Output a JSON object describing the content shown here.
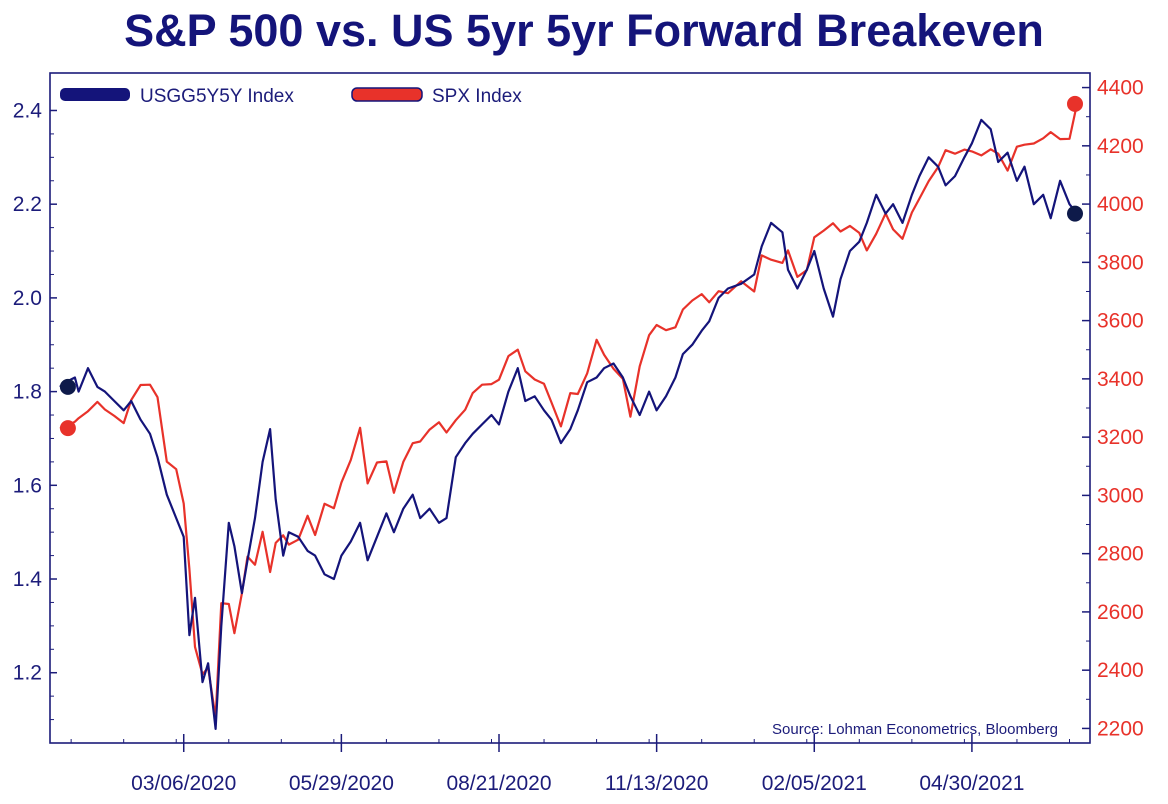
{
  "chart_data": {
    "type": "line",
    "title": "S&P 500 vs. US 5yr 5yr Forward Breakeven",
    "source": "Source: Lohman Econometrics, Bloomberg",
    "x_ticks": [
      "03/06/2020",
      "05/29/2020",
      "08/21/2020",
      "11/13/2020",
      "02/05/2021",
      "04/30/2021"
    ],
    "x_range": [
      "12/30/2019",
      "06/25/2021"
    ],
    "left_axis": {
      "ticks": [
        "1.2",
        "1.4",
        "1.6",
        "1.8",
        "2.0",
        "2.2",
        "2.4"
      ],
      "range": [
        1.05,
        2.48
      ]
    },
    "right_axis": {
      "ticks": [
        "2200",
        "2400",
        "2600",
        "2800",
        "3000",
        "3200",
        "3400",
        "3600",
        "3800",
        "4000",
        "4200",
        "4400"
      ],
      "range": [
        2150,
        4450
      ]
    },
    "legend_position": "top-left",
    "grid": false,
    "colors": {
      "title": "#14147a",
      "usgg": "#14147a",
      "spx": "#e8322a",
      "axis": "#1c1c7a"
    },
    "series": [
      {
        "name": "USGG5Y5Y Index",
        "axis": "left",
        "points": [
          [
            "12/31/2019",
            1.81
          ],
          [
            "01/03/2020",
            1.82
          ],
          [
            "01/08/2020",
            1.83
          ],
          [
            "01/10/2020",
            1.8
          ],
          [
            "01/15/2020",
            1.85
          ],
          [
            "01/20/2020",
            1.81
          ],
          [
            "01/24/2020",
            1.8
          ],
          [
            "01/29/2020",
            1.78
          ],
          [
            "02/03/2020",
            1.76
          ],
          [
            "02/07/2020",
            1.78
          ],
          [
            "02/12/2020",
            1.74
          ],
          [
            "02/17/2020",
            1.71
          ],
          [
            "02/21/2020",
            1.66
          ],
          [
            "02/26/2020",
            1.58
          ],
          [
            "03/02/2020",
            1.53
          ],
          [
            "03/06/2020",
            1.49
          ],
          [
            "03/09/2020",
            1.28
          ],
          [
            "03/12/2020",
            1.36
          ],
          [
            "03/16/2020",
            1.18
          ],
          [
            "03/19/2020",
            1.22
          ],
          [
            "03/23/2020",
            1.08
          ],
          [
            "03/26/2020",
            1.3
          ],
          [
            "03/30/2020",
            1.52
          ],
          [
            "04/02/2020",
            1.47
          ],
          [
            "04/06/2020",
            1.37
          ],
          [
            "04/09/2020",
            1.44
          ],
          [
            "04/13/2020",
            1.53
          ],
          [
            "04/17/2020",
            1.65
          ],
          [
            "04/21/2020",
            1.72
          ],
          [
            "04/24/2020",
            1.57
          ],
          [
            "04/28/2020",
            1.45
          ],
          [
            "05/01/2020",
            1.5
          ],
          [
            "05/06/2020",
            1.49
          ],
          [
            "05/11/2020",
            1.46
          ],
          [
            "05/15/2020",
            1.45
          ],
          [
            "05/20/2020",
            1.41
          ],
          [
            "05/25/2020",
            1.4
          ],
          [
            "05/29/2020",
            1.45
          ],
          [
            "06/03/2020",
            1.48
          ],
          [
            "06/08/2020",
            1.52
          ],
          [
            "06/12/2020",
            1.44
          ],
          [
            "06/17/2020",
            1.49
          ],
          [
            "06/22/2020",
            1.54
          ],
          [
            "06/26/2020",
            1.5
          ],
          [
            "07/01/2020",
            1.55
          ],
          [
            "07/06/2020",
            1.58
          ],
          [
            "07/10/2020",
            1.53
          ],
          [
            "07/15/2020",
            1.55
          ],
          [
            "07/20/2020",
            1.52
          ],
          [
            "07/24/2020",
            1.53
          ],
          [
            "07/29/2020",
            1.66
          ],
          [
            "08/03/2020",
            1.69
          ],
          [
            "08/07/2020",
            1.71
          ],
          [
            "08/12/2020",
            1.73
          ],
          [
            "08/17/2020",
            1.75
          ],
          [
            "08/21/2020",
            1.73
          ],
          [
            "08/26/2020",
            1.8
          ],
          [
            "08/31/2020",
            1.85
          ],
          [
            "09/04/2020",
            1.78
          ],
          [
            "09/09/2020",
            1.79
          ],
          [
            "09/14/2020",
            1.76
          ],
          [
            "09/18/2020",
            1.74
          ],
          [
            "09/23/2020",
            1.69
          ],
          [
            "09/28/2020",
            1.72
          ],
          [
            "10/02/2020",
            1.76
          ],
          [
            "10/07/2020",
            1.82
          ],
          [
            "10/12/2020",
            1.83
          ],
          [
            "10/16/2020",
            1.85
          ],
          [
            "10/21/2020",
            1.86
          ],
          [
            "10/26/2020",
            1.83
          ],
          [
            "10/30/2020",
            1.79
          ],
          [
            "11/04/2020",
            1.75
          ],
          [
            "11/09/2020",
            1.8
          ],
          [
            "11/13/2020",
            1.76
          ],
          [
            "11/18/2020",
            1.79
          ],
          [
            "11/23/2020",
            1.83
          ],
          [
            "11/27/2020",
            1.88
          ],
          [
            "12/02/2020",
            1.9
          ],
          [
            "12/07/2020",
            1.93
          ],
          [
            "12/11/2020",
            1.95
          ],
          [
            "12/16/2020",
            2.0
          ],
          [
            "12/21/2020",
            2.02
          ],
          [
            "12/28/2020",
            2.03
          ],
          [
            "01/04/2021",
            2.05
          ],
          [
            "01/08/2021",
            2.11
          ],
          [
            "01/13/2021",
            2.16
          ],
          [
            "01/19/2021",
            2.14
          ],
          [
            "01/22/2021",
            2.06
          ],
          [
            "01/27/2021",
            2.02
          ],
          [
            "02/01/2021",
            2.06
          ],
          [
            "02/05/2021",
            2.1
          ],
          [
            "02/10/2021",
            2.02
          ],
          [
            "02/15/2021",
            1.96
          ],
          [
            "02/19/2021",
            2.04
          ],
          [
            "02/24/2021",
            2.1
          ],
          [
            "03/01/2021",
            2.12
          ],
          [
            "03/05/2021",
            2.16
          ],
          [
            "03/10/2021",
            2.22
          ],
          [
            "03/15/2021",
            2.18
          ],
          [
            "03/19/2021",
            2.2
          ],
          [
            "03/24/2021",
            2.16
          ],
          [
            "03/29/2021",
            2.22
          ],
          [
            "04/02/2021",
            2.26
          ],
          [
            "04/07/2021",
            2.3
          ],
          [
            "04/12/2021",
            2.28
          ],
          [
            "04/16/2021",
            2.24
          ],
          [
            "04/21/2021",
            2.26
          ],
          [
            "04/26/2021",
            2.3
          ],
          [
            "04/30/2021",
            2.33
          ],
          [
            "05/05/2021",
            2.38
          ],
          [
            "05/10/2021",
            2.36
          ],
          [
            "05/14/2021",
            2.29
          ],
          [
            "05/19/2021",
            2.31
          ],
          [
            "05/24/2021",
            2.25
          ],
          [
            "05/28/2021",
            2.28
          ],
          [
            "06/02/2021",
            2.2
          ],
          [
            "06/07/2021",
            2.22
          ],
          [
            "06/11/2021",
            2.17
          ],
          [
            "06/16/2021",
            2.25
          ],
          [
            "06/21/2021",
            2.2
          ],
          [
            "06/25/2021",
            2.18
          ]
        ]
      },
      {
        "name": "SPX Index",
        "axis": "right",
        "points": [
          [
            "12/31/2019",
            3231
          ],
          [
            "01/03/2020",
            3234
          ],
          [
            "01/08/2020",
            3253
          ],
          [
            "01/10/2020",
            3265
          ],
          [
            "01/15/2020",
            3289
          ],
          [
            "01/20/2020",
            3321
          ],
          [
            "01/24/2020",
            3295
          ],
          [
            "01/29/2020",
            3273
          ],
          [
            "02/03/2020",
            3248
          ],
          [
            "02/07/2020",
            3327
          ],
          [
            "02/12/2020",
            3379
          ],
          [
            "02/17/2020",
            3380
          ],
          [
            "02/21/2020",
            3337
          ],
          [
            "02/26/2020",
            3116
          ],
          [
            "03/02/2020",
            3090
          ],
          [
            "03/06/2020",
            2972
          ],
          [
            "03/09/2020",
            2747
          ],
          [
            "03/12/2020",
            2480
          ],
          [
            "03/16/2020",
            2386
          ],
          [
            "03/19/2020",
            2409
          ],
          [
            "03/23/2020",
            2237
          ],
          [
            "03/26/2020",
            2630
          ],
          [
            "03/30/2020",
            2627
          ],
          [
            "04/02/2020",
            2527
          ],
          [
            "04/06/2020",
            2664
          ],
          [
            "04/09/2020",
            2790
          ],
          [
            "04/13/2020",
            2762
          ],
          [
            "04/17/2020",
            2875
          ],
          [
            "04/21/2020",
            2737
          ],
          [
            "04/24/2020",
            2837
          ],
          [
            "04/28/2020",
            2863
          ],
          [
            "05/01/2020",
            2831
          ],
          [
            "05/06/2020",
            2848
          ],
          [
            "05/11/2020",
            2930
          ],
          [
            "05/15/2020",
            2864
          ],
          [
            "05/20/2020",
            2971
          ],
          [
            "05/25/2020",
            2956
          ],
          [
            "05/29/2020",
            3044
          ],
          [
            "06/03/2020",
            3122
          ],
          [
            "06/08/2020",
            3232
          ],
          [
            "06/12/2020",
            3041
          ],
          [
            "06/17/2020",
            3113
          ],
          [
            "06/22/2020",
            3117
          ],
          [
            "06/26/2020",
            3009
          ],
          [
            "07/01/2020",
            3115
          ],
          [
            "07/06/2020",
            3179
          ],
          [
            "07/10/2020",
            3185
          ],
          [
            "07/15/2020",
            3226
          ],
          [
            "07/20/2020",
            3251
          ],
          [
            "07/24/2020",
            3216
          ],
          [
            "07/29/2020",
            3258
          ],
          [
            "08/03/2020",
            3294
          ],
          [
            "08/07/2020",
            3351
          ],
          [
            "08/12/2020",
            3380
          ],
          [
            "08/17/2020",
            3382
          ],
          [
            "08/21/2020",
            3397
          ],
          [
            "08/26/2020",
            3478
          ],
          [
            "08/31/2020",
            3500
          ],
          [
            "09/04/2020",
            3426
          ],
          [
            "09/09/2020",
            3398
          ],
          [
            "09/14/2020",
            3383
          ],
          [
            "09/18/2020",
            3319
          ],
          [
            "09/23/2020",
            3237
          ],
          [
            "09/28/2020",
            3351
          ],
          [
            "10/02/2020",
            3348
          ],
          [
            "10/07/2020",
            3419
          ],
          [
            "10/12/2020",
            3534
          ],
          [
            "10/16/2020",
            3483
          ],
          [
            "10/21/2020",
            3435
          ],
          [
            "10/26/2020",
            3400
          ],
          [
            "10/30/2020",
            3270
          ],
          [
            "11/04/2020",
            3443
          ],
          [
            "11/09/2020",
            3550
          ],
          [
            "11/13/2020",
            3585
          ],
          [
            "11/18/2020",
            3567
          ],
          [
            "11/23/2020",
            3577
          ],
          [
            "11/27/2020",
            3638
          ],
          [
            "12/02/2020",
            3669
          ],
          [
            "12/07/2020",
            3691
          ],
          [
            "12/11/2020",
            3663
          ],
          [
            "12/16/2020",
            3701
          ],
          [
            "12/21/2020",
            3694
          ],
          [
            "12/28/2020",
            3735
          ],
          [
            "01/04/2021",
            3700
          ],
          [
            "01/08/2021",
            3824
          ],
          [
            "01/13/2021",
            3809
          ],
          [
            "01/19/2021",
            3798
          ],
          [
            "01/22/2021",
            3841
          ],
          [
            "01/27/2021",
            3750
          ],
          [
            "02/01/2021",
            3773
          ],
          [
            "02/05/2021",
            3886
          ],
          [
            "02/10/2021",
            3909
          ],
          [
            "02/15/2021",
            3934
          ],
          [
            "02/19/2021",
            3906
          ],
          [
            "02/24/2021",
            3925
          ],
          [
            "03/01/2021",
            3901
          ],
          [
            "03/05/2021",
            3841
          ],
          [
            "03/10/2021",
            3898
          ],
          [
            "03/15/2021",
            3968
          ],
          [
            "03/19/2021",
            3913
          ],
          [
            "03/24/2021",
            3881
          ],
          [
            "03/29/2021",
            3971
          ],
          [
            "04/02/2021",
            4019
          ],
          [
            "04/07/2021",
            4079
          ],
          [
            "04/12/2021",
            4127
          ],
          [
            "04/16/2021",
            4185
          ],
          [
            "04/21/2021",
            4173
          ],
          [
            "04/26/2021",
            4187
          ],
          [
            "04/30/2021",
            4181
          ],
          [
            "05/05/2021",
            4167
          ],
          [
            "05/10/2021",
            4188
          ],
          [
            "05/14/2021",
            4173
          ],
          [
            "05/19/2021",
            4115
          ],
          [
            "05/24/2021",
            4197
          ],
          [
            "05/28/2021",
            4204
          ],
          [
            "06/02/2021",
            4208
          ],
          [
            "06/07/2021",
            4226
          ],
          [
            "06/11/2021",
            4247
          ],
          [
            "06/16/2021",
            4223
          ],
          [
            "06/21/2021",
            4224
          ],
          [
            "06/25/2021",
            4344
          ]
        ]
      }
    ]
  }
}
